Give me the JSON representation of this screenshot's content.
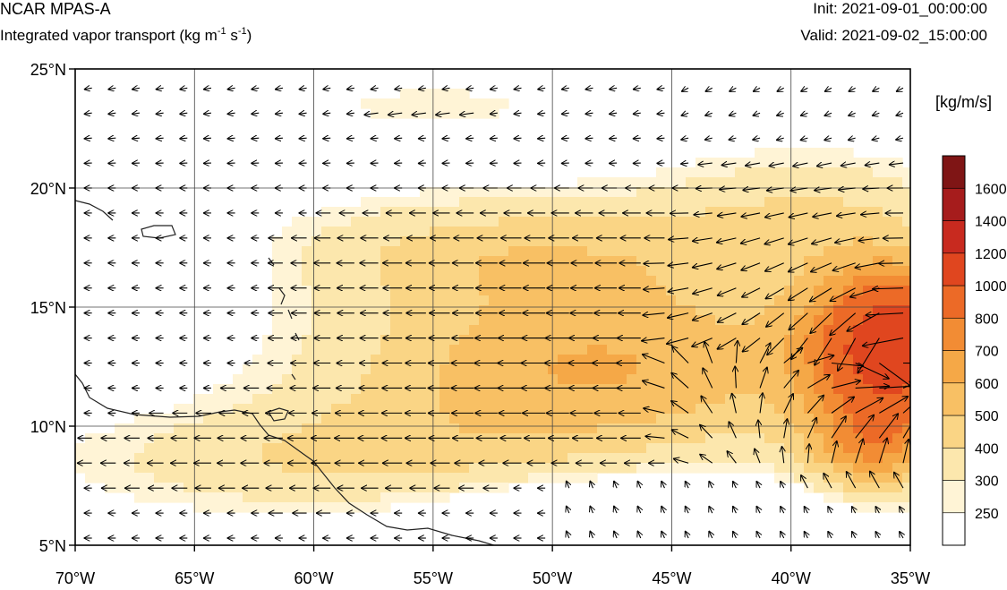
{
  "header": {
    "title": "NCAR MPAS-A",
    "subtitle_text": "Integrated vapor transport (kg m",
    "subtitle_exp1": "-1",
    "subtitle_mid": " s",
    "subtitle_exp2": "-1",
    "subtitle_close": ")",
    "init": "Init: 2021-09-01_00:00:00",
    "valid": "Valid: 2021-09-02_15:00:00"
  },
  "map": {
    "lon_range": [
      -70,
      -35
    ],
    "lat_range": [
      5,
      25
    ],
    "lon_ticks": [
      "70°W",
      "65°W",
      "60°W",
      "55°W",
      "50°W",
      "45°W",
      "40°W",
      "35°W"
    ],
    "lat_ticks": [
      "5°N",
      "10°N",
      "15°N",
      "20°N",
      "25°N"
    ],
    "grid": true
  },
  "colorbar": {
    "units": "[kg/m/s]",
    "levels": [
      "250",
      "300",
      "400",
      "500",
      "600",
      "700",
      "800",
      "1000",
      "1200",
      "1400",
      "1600"
    ],
    "colors": [
      "#ffffff",
      "#fff4d6",
      "#fce7ad",
      "#fad585",
      "#f8c064",
      "#f5a847",
      "#f28c34",
      "#ec6a27",
      "#e0461f",
      "#c82a1f",
      "#a61c1c",
      "#7f1515"
    ]
  }
}
